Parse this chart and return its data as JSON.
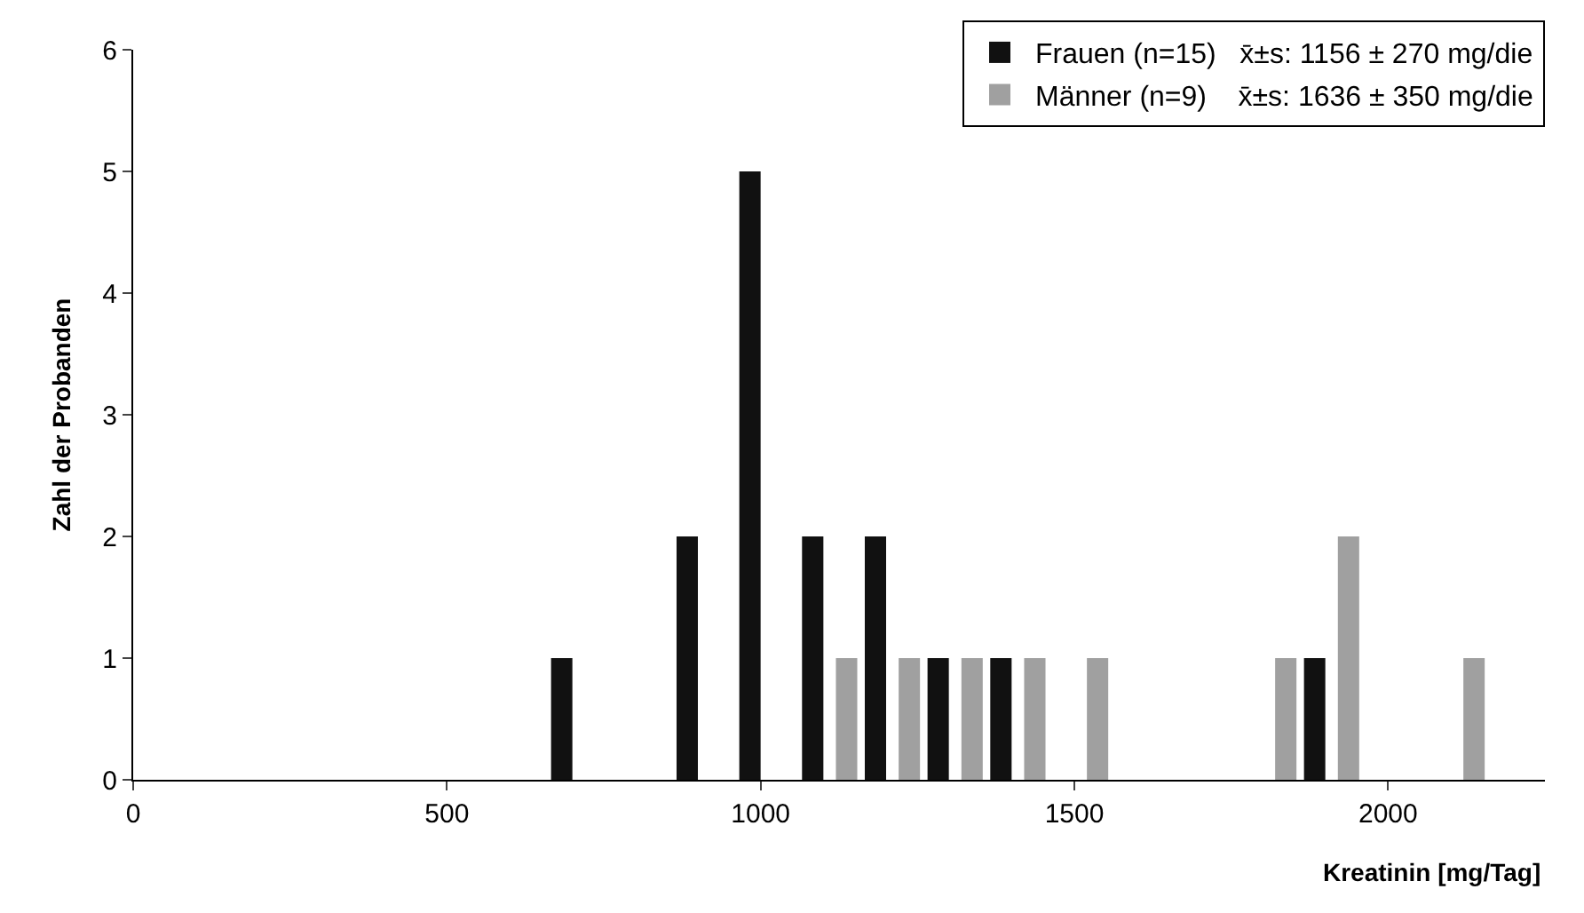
{
  "chart_data": {
    "type": "bar",
    "xlabel": "Kreatinin [mg/Tag]",
    "ylabel": "Zahl der Probanden",
    "x": [
      700,
      900,
      1000,
      1100,
      1200,
      1300,
      1400,
      1500,
      1800,
      1900,
      2100
    ],
    "series": [
      {
        "name": "Frauen (n=15)   x̄±s: 1156 ± 270 mg/die",
        "color": "#111111",
        "values": [
          1,
          2,
          5,
          2,
          2,
          1,
          1,
          null,
          null,
          1,
          null
        ]
      },
      {
        "name": "Männer (n=9)    x̄±s: 1636 ± 350 mg/die",
        "color": "#a0a0a0",
        "values": [
          null,
          null,
          null,
          1,
          1,
          1,
          1,
          1,
          1,
          2,
          1
        ]
      }
    ],
    "xlim": [
      0,
      2250
    ],
    "xticks": [
      0,
      500,
      1000,
      1500,
      2000
    ],
    "ylim": [
      0,
      6
    ],
    "yticks": [
      0,
      1,
      2,
      3,
      4,
      5,
      6
    ],
    "grid": false,
    "legend": "top right"
  }
}
